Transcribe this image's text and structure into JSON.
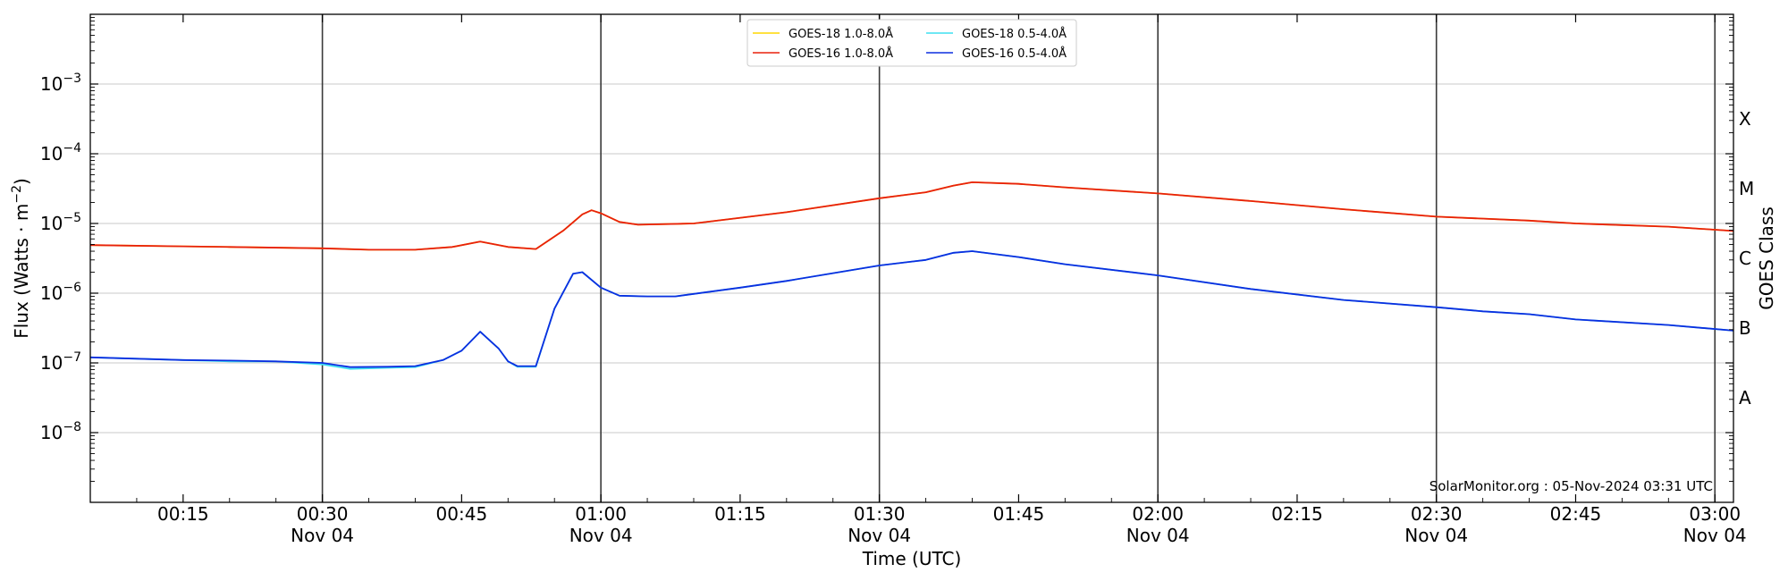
{
  "chart_data": {
    "type": "line",
    "xlabel": "Time (UTC)",
    "ylabel": "Flux (Watts · m",
    "ylabel_sup": "−2",
    "ylabel_close": ")",
    "y2label": "GOES Class",
    "y_scale": "log",
    "ylim": [
      1e-09,
      0.01
    ],
    "xlim": [
      "2024-11-04 00:05",
      "2024-11-04 03:02"
    ],
    "grid": "horizontal major",
    "legend_position": "top-center",
    "credit": "SolarMonitor.org : 05-Nov-2024 03:31 UTC",
    "y_ticks": [
      {
        "value": 0.001,
        "base": "10",
        "exp": "−3"
      },
      {
        "value": 0.0001,
        "base": "10",
        "exp": "−4"
      },
      {
        "value": 1e-05,
        "base": "10",
        "exp": "−5"
      },
      {
        "value": 1e-06,
        "base": "10",
        "exp": "−6"
      },
      {
        "value": 1e-07,
        "base": "10",
        "exp": "−7"
      },
      {
        "value": 1e-08,
        "base": "10",
        "exp": "−8"
      }
    ],
    "x_ticks": [
      {
        "time": "00:15",
        "label": "00:15",
        "date": ""
      },
      {
        "time": "00:30",
        "label": "00:30",
        "date": "Nov 04"
      },
      {
        "time": "00:45",
        "label": "00:45",
        "date": ""
      },
      {
        "time": "01:00",
        "label": "01:00",
        "date": "Nov 04"
      },
      {
        "time": "01:15",
        "label": "01:15",
        "date": ""
      },
      {
        "time": "01:30",
        "label": "01:30",
        "date": "Nov 04"
      },
      {
        "time": "01:45",
        "label": "01:45",
        "date": ""
      },
      {
        "time": "02:00",
        "label": "02:00",
        "date": "Nov 04"
      },
      {
        "time": "02:15",
        "label": "02:15",
        "date": ""
      },
      {
        "time": "02:30",
        "label": "02:30",
        "date": "Nov 04"
      },
      {
        "time": "02:45",
        "label": "02:45",
        "date": ""
      },
      {
        "time": "03:00",
        "label": "03:00",
        "date": "Nov 04"
      }
    ],
    "vertical_lines": [
      "00:30",
      "01:00",
      "01:30",
      "02:00",
      "02:30",
      "03:00"
    ],
    "goes_classes": [
      {
        "label": "X",
        "at": 0.000316
      },
      {
        "label": "M",
        "at": 3.16e-05
      },
      {
        "label": "C",
        "at": 3.16e-06
      },
      {
        "label": "B",
        "at": 3.16e-07
      },
      {
        "label": "A",
        "at": 3.16e-08
      }
    ],
    "series": [
      {
        "name": "GOES-18 1.0-8.0Å",
        "color": "#ffd700",
        "points": [
          [
            "00:05",
            4.9e-06
          ],
          [
            "00:15",
            4.7e-06
          ],
          [
            "00:20",
            4.6e-06
          ],
          [
            "00:30",
            4.4e-06
          ],
          [
            "00:35",
            4.2e-06
          ],
          [
            "00:40",
            4.2e-06
          ],
          [
            "00:44",
            4.6e-06
          ],
          [
            "00:47",
            5.5e-06
          ],
          [
            "00:50",
            4.6e-06
          ],
          [
            "00:53",
            4.3e-06
          ],
          [
            "00:56",
            8e-06
          ],
          [
            "00:58",
            1.35e-05
          ],
          [
            "00:59",
            1.55e-05
          ],
          [
            "01:00",
            1.4e-05
          ],
          [
            "01:02",
            1.05e-05
          ],
          [
            "01:04",
            9.6e-06
          ],
          [
            "01:10",
            1e-05
          ],
          [
            "01:20",
            1.45e-05
          ],
          [
            "01:30",
            2.3e-05
          ],
          [
            "01:35",
            2.8e-05
          ],
          [
            "01:38",
            3.5e-05
          ],
          [
            "01:40",
            3.9e-05
          ],
          [
            "01:45",
            3.7e-05
          ],
          [
            "01:50",
            3.3e-05
          ],
          [
            "02:00",
            2.7e-05
          ],
          [
            "02:10",
            2.1e-05
          ],
          [
            "02:20",
            1.6e-05
          ],
          [
            "02:30",
            1.25e-05
          ],
          [
            "02:40",
            1.1e-05
          ],
          [
            "02:45",
            1e-05
          ],
          [
            "02:55",
            9e-06
          ],
          [
            "03:02",
            7.8e-06
          ]
        ]
      },
      {
        "name": "GOES-16 1.0-8.0Å",
        "color": "#e8200c",
        "points": [
          [
            "00:05",
            4.9e-06
          ],
          [
            "00:15",
            4.7e-06
          ],
          [
            "00:20",
            4.6e-06
          ],
          [
            "00:30",
            4.4e-06
          ],
          [
            "00:35",
            4.2e-06
          ],
          [
            "00:40",
            4.2e-06
          ],
          [
            "00:44",
            4.6e-06
          ],
          [
            "00:47",
            5.5e-06
          ],
          [
            "00:50",
            4.6e-06
          ],
          [
            "00:53",
            4.3e-06
          ],
          [
            "00:56",
            8e-06
          ],
          [
            "00:58",
            1.35e-05
          ],
          [
            "00:59",
            1.55e-05
          ],
          [
            "01:00",
            1.4e-05
          ],
          [
            "01:02",
            1.05e-05
          ],
          [
            "01:04",
            9.6e-06
          ],
          [
            "01:10",
            1e-05
          ],
          [
            "01:20",
            1.45e-05
          ],
          [
            "01:30",
            2.3e-05
          ],
          [
            "01:35",
            2.8e-05
          ],
          [
            "01:38",
            3.5e-05
          ],
          [
            "01:40",
            3.9e-05
          ],
          [
            "01:45",
            3.7e-05
          ],
          [
            "01:50",
            3.3e-05
          ],
          [
            "02:00",
            2.7e-05
          ],
          [
            "02:10",
            2.1e-05
          ],
          [
            "02:20",
            1.6e-05
          ],
          [
            "02:30",
            1.25e-05
          ],
          [
            "02:40",
            1.1e-05
          ],
          [
            "02:45",
            1e-05
          ],
          [
            "02:55",
            9e-06
          ],
          [
            "03:02",
            7.8e-06
          ]
        ]
      },
      {
        "name": "GOES-18 0.5-4.0Å",
        "color": "#3fe0f0",
        "points": [
          [
            "00:05",
            1.2e-07
          ],
          [
            "00:15",
            1.1e-07
          ],
          [
            "00:20",
            1.05e-07
          ],
          [
            "00:25",
            1.05e-07
          ],
          [
            "00:30",
            9.5e-08
          ],
          [
            "00:33",
            8.2e-08
          ],
          [
            "00:37",
            8.5e-08
          ],
          [
            "00:40",
            8.7e-08
          ],
          [
            "00:43",
            1.1e-07
          ],
          [
            "00:45",
            1.5e-07
          ],
          [
            "00:47",
            2.8e-07
          ],
          [
            "00:49",
            1.6e-07
          ],
          [
            "00:50",
            1.05e-07
          ],
          [
            "00:51",
            8.8e-08
          ],
          [
            "00:53",
            8.8e-08
          ],
          [
            "00:55",
            6e-07
          ],
          [
            "00:57",
            1.9e-06
          ],
          [
            "00:58",
            2e-06
          ],
          [
            "01:00",
            1.2e-06
          ],
          [
            "01:02",
            9.2e-07
          ],
          [
            "01:05",
            9e-07
          ],
          [
            "01:08",
            9e-07
          ],
          [
            "01:15",
            1.2e-06
          ],
          [
            "01:20",
            1.5e-06
          ],
          [
            "01:30",
            2.5e-06
          ],
          [
            "01:35",
            3e-06
          ],
          [
            "01:38",
            3.8e-06
          ],
          [
            "01:40",
            4e-06
          ],
          [
            "01:45",
            3.3e-06
          ],
          [
            "01:50",
            2.6e-06
          ],
          [
            "02:00",
            1.8e-06
          ],
          [
            "02:10",
            1.15e-06
          ],
          [
            "02:20",
            8e-07
          ],
          [
            "02:30",
            6.3e-07
          ],
          [
            "02:35",
            5.5e-07
          ],
          [
            "02:40",
            5e-07
          ],
          [
            "02:45",
            4.2e-07
          ],
          [
            "02:55",
            3.5e-07
          ],
          [
            "03:02",
            2.9e-07
          ]
        ]
      },
      {
        "name": "GOES-16 0.5-4.0Å",
        "color": "#0b2ee0",
        "points": [
          [
            "00:05",
            1.2e-07
          ],
          [
            "00:15",
            1.1e-07
          ],
          [
            "00:20",
            1.08e-07
          ],
          [
            "00:25",
            1.05e-07
          ],
          [
            "00:30",
            1e-07
          ],
          [
            "00:33",
            8.7e-08
          ],
          [
            "00:37",
            8.8e-08
          ],
          [
            "00:40",
            9e-08
          ],
          [
            "00:43",
            1.1e-07
          ],
          [
            "00:45",
            1.5e-07
          ],
          [
            "00:47",
            2.8e-07
          ],
          [
            "00:49",
            1.6e-07
          ],
          [
            "00:50",
            1.05e-07
          ],
          [
            "00:51",
            9e-08
          ],
          [
            "00:53",
            9e-08
          ],
          [
            "00:55",
            6e-07
          ],
          [
            "00:57",
            1.9e-06
          ],
          [
            "00:58",
            2e-06
          ],
          [
            "01:00",
            1.2e-06
          ],
          [
            "01:02",
            9.2e-07
          ],
          [
            "01:05",
            9e-07
          ],
          [
            "01:08",
            9e-07
          ],
          [
            "01:15",
            1.2e-06
          ],
          [
            "01:20",
            1.5e-06
          ],
          [
            "01:30",
            2.5e-06
          ],
          [
            "01:35",
            3e-06
          ],
          [
            "01:38",
            3.8e-06
          ],
          [
            "01:40",
            4e-06
          ],
          [
            "01:45",
            3.3e-06
          ],
          [
            "01:50",
            2.6e-06
          ],
          [
            "02:00",
            1.8e-06
          ],
          [
            "02:10",
            1.15e-06
          ],
          [
            "02:20",
            8e-07
          ],
          [
            "02:30",
            6.3e-07
          ],
          [
            "02:35",
            5.5e-07
          ],
          [
            "02:40",
            5e-07
          ],
          [
            "02:45",
            4.2e-07
          ],
          [
            "02:55",
            3.5e-07
          ],
          [
            "03:02",
            2.9e-07
          ]
        ]
      }
    ]
  }
}
